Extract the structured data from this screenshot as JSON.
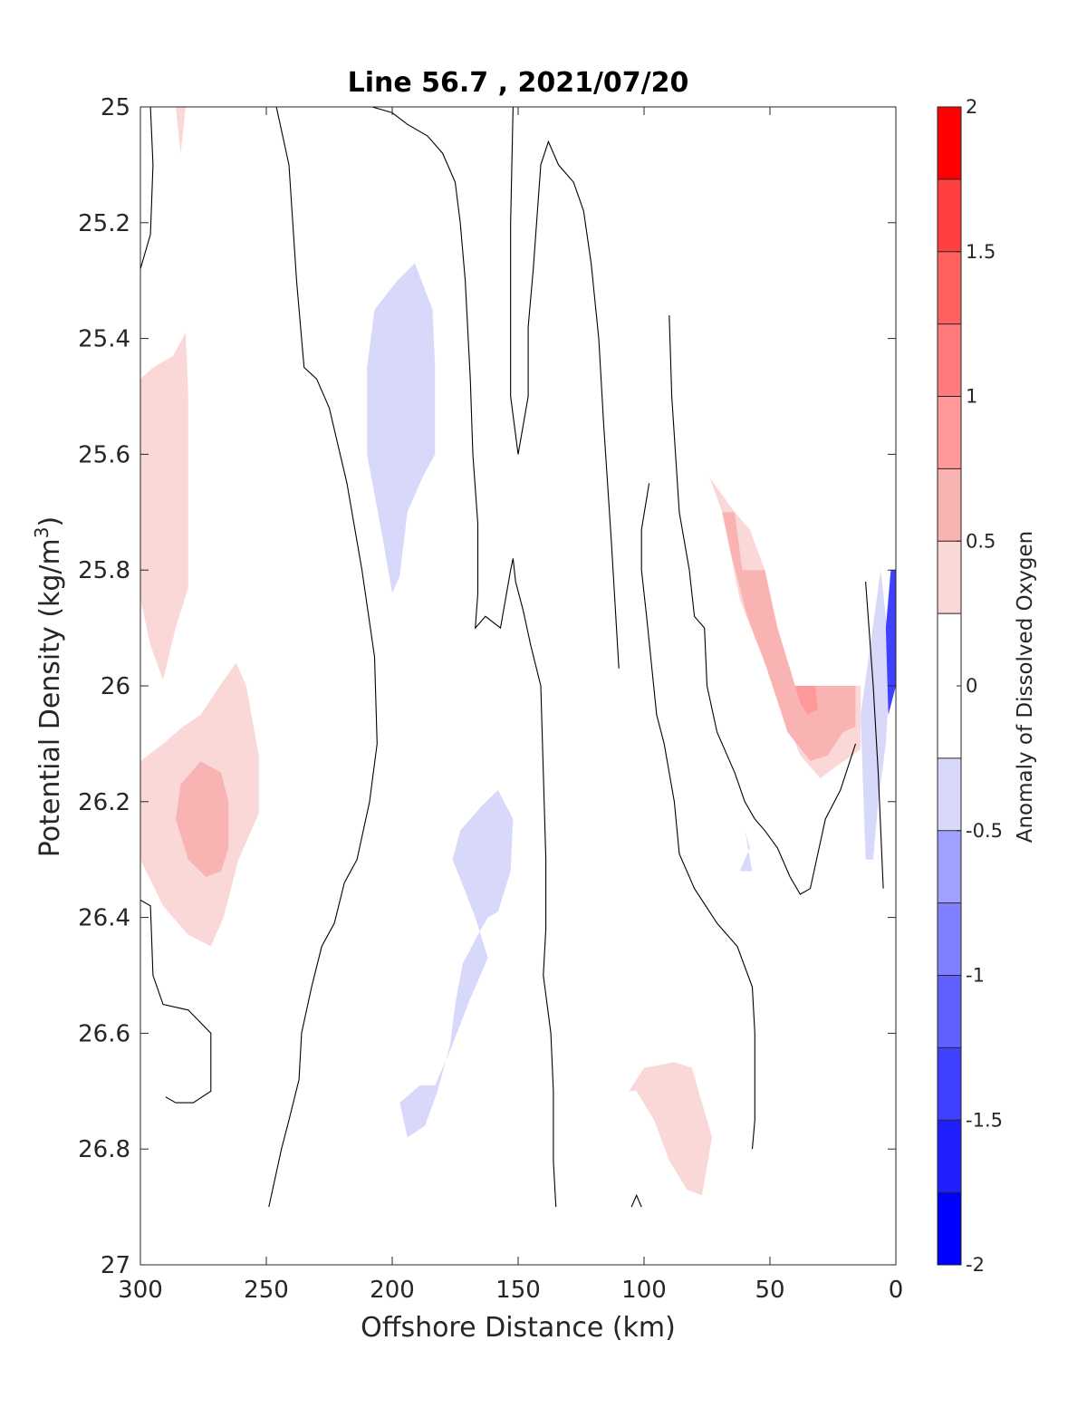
{
  "chart_data": {
    "type": "contour",
    "title": "Line 56.7 , 2021/07/20",
    "xlabel": "Offshore Distance (km)",
    "ylabel_main": "Potential Density (kg/m",
    "ylabel_sup": "3",
    "ylabel_close": ")",
    "xlim": [
      300,
      0
    ],
    "ylim": [
      25,
      27
    ],
    "x_reversed": true,
    "y_reversed": true,
    "xticks": [
      300,
      250,
      200,
      150,
      100,
      50,
      0
    ],
    "xtick_labels": [
      "300",
      "250",
      "200",
      "150",
      "100",
      "50",
      "0"
    ],
    "yticks": [
      25,
      25.2,
      25.4,
      25.6,
      25.8,
      26,
      26.2,
      26.4,
      26.6,
      26.8,
      27
    ],
    "ytick_labels": [
      "25",
      "25.2",
      "25.4",
      "25.6",
      "25.8",
      "26",
      "26.2",
      "26.4",
      "26.6",
      "26.8",
      "27"
    ],
    "colorbar": {
      "label": "Anomaly of Dissolved Oxygen",
      "range": [
        -2,
        2
      ],
      "ticks": [
        -2,
        -1.5,
        -1,
        -0.5,
        0,
        0.5,
        1,
        1.5,
        2
      ],
      "tick_labels": [
        "-2",
        "-1.5",
        "-1",
        "-0.5",
        "0",
        "0.5",
        "1",
        "1.5",
        "2"
      ],
      "levels": [
        {
          "from": -2.0,
          "to": -1.75,
          "color": "#0000ff"
        },
        {
          "from": -1.75,
          "to": -1.5,
          "color": "#2020ff"
        },
        {
          "from": -1.5,
          "to": -1.25,
          "color": "#4040ff"
        },
        {
          "from": -1.25,
          "to": -1.0,
          "color": "#6060ff"
        },
        {
          "from": -1.0,
          "to": -0.75,
          "color": "#8080ff"
        },
        {
          "from": -0.75,
          "to": -0.5,
          "color": "#a0a0ff"
        },
        {
          "from": -0.5,
          "to": -0.25,
          "color": "#d8d8fa"
        },
        {
          "from": -0.25,
          "to": 0.25,
          "color": "#ffffff"
        },
        {
          "from": 0.25,
          "to": 0.5,
          "color": "#fbd8d8"
        },
        {
          "from": 0.5,
          "to": 0.75,
          "color": "#f9b3b3"
        },
        {
          "from": 0.75,
          "to": 1.0,
          "color": "#ff9999"
        },
        {
          "from": 1.0,
          "to": 1.25,
          "color": "#ff7b7b"
        },
        {
          "from": 1.25,
          "to": 1.5,
          "color": "#ff6060"
        },
        {
          "from": 1.5,
          "to": 1.75,
          "color": "#ff4040"
        },
        {
          "from": 1.75,
          "to": 2.0,
          "color": "#ff0000"
        }
      ]
    },
    "filled_regions": [
      {
        "level": 0.35,
        "points": [
          [
            286,
            25
          ],
          [
            282,
            25
          ],
          [
            284,
            25.08
          ]
        ]
      },
      {
        "level": 0.35,
        "points": [
          [
            300,
            25.75
          ],
          [
            300,
            25.47
          ],
          [
            295,
            25.45
          ],
          [
            287,
            25.43
          ],
          [
            282,
            25.39
          ],
          [
            281,
            25.5
          ],
          [
            281,
            25.83
          ],
          [
            286,
            25.9
          ],
          [
            291,
            25.99
          ],
          [
            296,
            25.93
          ],
          [
            300,
            25.85
          ]
        ]
      },
      {
        "level": 0.35,
        "points": [
          [
            300,
            26.13
          ],
          [
            300,
            26.3
          ],
          [
            291,
            26.38
          ],
          [
            281,
            26.43
          ],
          [
            272,
            26.45
          ],
          [
            267,
            26.4
          ],
          [
            261,
            26.3
          ],
          [
            253,
            26.22
          ],
          [
            253,
            26.12
          ],
          [
            258,
            26
          ],
          [
            262,
            25.96
          ],
          [
            270,
            26.01
          ],
          [
            276,
            26.05
          ],
          [
            283,
            26.07
          ],
          [
            291,
            26.1
          ]
        ]
      },
      {
        "level": 0.6,
        "points": [
          [
            284,
            26.17
          ],
          [
            276,
            26.13
          ],
          [
            268,
            26.15
          ],
          [
            265,
            26.2
          ],
          [
            265,
            26.28
          ],
          [
            268,
            26.32
          ],
          [
            274,
            26.33
          ],
          [
            281,
            26.3
          ],
          [
            286,
            26.23
          ]
        ]
      },
      {
        "level": -0.35,
        "points": [
          [
            191,
            25.27
          ],
          [
            184,
            25.35
          ],
          [
            183,
            25.45
          ],
          [
            183,
            25.6
          ],
          [
            188,
            25.64
          ],
          [
            194,
            25.7
          ],
          [
            197,
            25.81
          ],
          [
            200,
            25.84
          ],
          [
            204,
            25.74
          ],
          [
            210,
            25.6
          ],
          [
            210,
            25.45
          ],
          [
            207,
            25.35
          ],
          [
            198,
            25.3
          ]
        ]
      },
      {
        "level": -0.35,
        "points": [
          [
            158,
            26.18
          ],
          [
            152,
            26.23
          ],
          [
            153,
            26.32
          ],
          [
            158,
            26.39
          ],
          [
            162,
            26.4
          ],
          [
            166,
            26.43
          ],
          [
            172,
            26.48
          ],
          [
            175,
            26.55
          ],
          [
            177,
            26.62
          ],
          [
            182,
            26.7
          ],
          [
            187,
            26.76
          ],
          [
            194,
            26.78
          ],
          [
            197,
            26.72
          ],
          [
            189,
            26.69
          ],
          [
            183,
            26.69
          ],
          [
            177,
            26.63
          ],
          [
            169,
            26.54
          ],
          [
            162,
            26.47
          ],
          [
            167,
            26.4
          ],
          [
            176,
            26.3
          ],
          [
            173,
            26.25
          ],
          [
            165,
            26.21
          ]
        ]
      },
      {
        "level": 0.35,
        "points": [
          [
            106,
            26.7
          ],
          [
            100,
            26.66
          ],
          [
            88,
            26.65
          ],
          [
            81,
            26.66
          ],
          [
            73,
            26.78
          ],
          [
            77,
            26.88
          ],
          [
            83,
            26.87
          ],
          [
            90,
            26.82
          ],
          [
            96,
            26.75
          ],
          [
            103,
            26.7
          ]
        ]
      },
      {
        "level": 0.35,
        "points": [
          [
            74,
            25.64
          ],
          [
            69,
            25.7
          ],
          [
            62,
            25.85
          ],
          [
            53,
            25.95
          ],
          [
            47,
            26.02
          ],
          [
            38,
            26.12
          ],
          [
            30,
            26.16
          ],
          [
            24,
            26.14
          ],
          [
            14,
            26.11
          ],
          [
            14,
            26
          ],
          [
            30,
            26
          ],
          [
            40,
            26
          ],
          [
            47,
            25.9
          ],
          [
            52,
            25.8
          ],
          [
            58,
            25.73
          ],
          [
            64,
            25.7
          ]
        ]
      },
      {
        "level": 0.6,
        "points": [
          [
            69,
            25.7
          ],
          [
            64,
            25.7
          ],
          [
            61,
            25.8
          ],
          [
            52,
            25.8
          ],
          [
            47,
            25.9
          ],
          [
            40,
            26
          ],
          [
            30,
            26
          ],
          [
            16,
            26
          ],
          [
            16,
            26.07
          ],
          [
            21,
            26.08
          ],
          [
            27,
            26.12
          ],
          [
            34,
            26.13
          ],
          [
            43,
            26.08
          ],
          [
            52,
            25.96
          ],
          [
            59,
            25.88
          ],
          [
            65,
            25.78
          ]
        ]
      },
      {
        "level": 0.85,
        "points": [
          [
            40,
            26
          ],
          [
            32,
            26
          ],
          [
            31,
            26.04
          ],
          [
            35,
            26.05
          ],
          [
            38,
            26.03
          ]
        ]
      },
      {
        "level": -0.35,
        "points": [
          [
            60,
            26.25
          ],
          [
            58,
            26.28
          ],
          [
            62,
            26.32
          ],
          [
            57,
            26.32
          ]
        ]
      },
      {
        "level": -0.35,
        "points": [
          [
            6,
            25.8
          ],
          [
            4,
            25.88
          ],
          [
            2,
            25.96
          ],
          [
            4,
            26.1
          ],
          [
            7,
            26.2
          ],
          [
            9,
            26.3
          ],
          [
            12,
            26.3
          ],
          [
            14,
            26.05
          ]
        ]
      },
      {
        "level": -1.3,
        "points": [
          [
            2,
            25.8
          ],
          [
            0,
            25.8
          ],
          [
            0,
            26
          ],
          [
            3,
            26.05
          ],
          [
            4,
            25.9
          ]
        ]
      }
    ],
    "contour_lines": [
      [
        [
          300,
          25.28
        ],
        [
          296,
          25.22
        ],
        [
          295,
          25.1
        ],
        [
          296,
          25
        ]
      ],
      [
        [
          300,
          26.37
        ],
        [
          296,
          26.38
        ],
        [
          295,
          26.5
        ],
        [
          291,
          26.55
        ],
        [
          281,
          26.56
        ],
        [
          272,
          26.6
        ],
        [
          272,
          26.7
        ],
        [
          279,
          26.72
        ],
        [
          286,
          26.72
        ],
        [
          290,
          26.71
        ]
      ],
      [
        [
          246,
          25
        ],
        [
          241,
          25.1
        ],
        [
          238,
          25.3
        ],
        [
          236,
          25.4
        ],
        [
          235,
          25.45
        ],
        [
          230,
          25.47
        ],
        [
          225,
          25.52
        ],
        [
          218,
          25.65
        ],
        [
          212,
          25.8
        ],
        [
          207,
          25.95
        ],
        [
          206,
          26.1
        ],
        [
          209,
          26.2
        ],
        [
          214,
          26.3
        ],
        [
          219,
          26.34
        ],
        [
          223,
          26.41
        ],
        [
          228,
          26.45
        ],
        [
          232,
          26.52
        ],
        [
          236,
          26.6
        ],
        [
          237,
          26.68
        ],
        [
          241,
          26.75
        ],
        [
          244,
          26.8
        ],
        [
          249,
          26.9
        ]
      ],
      [
        [
          208,
          25
        ],
        [
          200,
          25.01
        ],
        [
          194,
          25.03
        ],
        [
          186,
          25.05
        ],
        [
          180,
          25.08
        ],
        [
          175,
          25.13
        ],
        [
          173,
          25.2
        ],
        [
          171,
          25.3
        ],
        [
          169,
          25.47
        ],
        [
          168,
          25.6
        ],
        [
          166,
          25.72
        ],
        [
          166,
          25.84
        ],
        [
          167,
          25.9
        ],
        [
          163,
          25.88
        ],
        [
          157,
          25.9
        ],
        [
          155,
          25.85
        ],
        [
          153,
          25.8
        ],
        [
          152,
          25.78
        ],
        [
          151,
          25.82
        ],
        [
          148,
          25.87
        ],
        [
          145,
          25.93
        ],
        [
          141,
          26
        ],
        [
          140,
          26.15
        ],
        [
          139,
          26.3
        ],
        [
          139,
          26.42
        ],
        [
          140,
          26.5
        ],
        [
          137,
          26.6
        ],
        [
          136,
          26.7
        ],
        [
          136,
          26.82
        ],
        [
          135,
          26.9
        ]
      ],
      [
        [
          152,
          25
        ],
        [
          153,
          25.2
        ],
        [
          153,
          25.5
        ],
        [
          150,
          25.6
        ],
        [
          146,
          25.5
        ],
        [
          146,
          25.38
        ],
        [
          144,
          25.28
        ],
        [
          141,
          25.1
        ],
        [
          138,
          25.06
        ],
        [
          134,
          25.1
        ],
        [
          128,
          25.13
        ],
        [
          124,
          25.18
        ],
        [
          121,
          25.27
        ],
        [
          118,
          25.4
        ],
        [
          116,
          25.55
        ],
        [
          113,
          25.75
        ],
        [
          110,
          25.97
        ]
      ],
      [
        [
          90,
          25.36
        ],
        [
          89,
          25.5
        ],
        [
          86,
          25.7
        ],
        [
          82,
          25.8
        ],
        [
          80,
          25.88
        ],
        [
          76,
          25.9
        ],
        [
          75,
          26.0
        ],
        [
          71,
          26.08
        ],
        [
          64,
          26.15
        ],
        [
          60,
          26.2
        ],
        [
          56,
          26.23
        ],
        [
          52,
          26.25
        ],
        [
          47,
          26.28
        ],
        [
          42,
          26.33
        ],
        [
          38,
          26.36
        ],
        [
          34,
          26.35
        ],
        [
          28,
          26.23
        ],
        [
          22,
          26.18
        ],
        [
          16,
          26.1
        ]
      ],
      [
        [
          98,
          25.65
        ],
        [
          101,
          25.73
        ],
        [
          101,
          25.8
        ],
        [
          99,
          25.88
        ],
        [
          95,
          26.05
        ],
        [
          92,
          26.1
        ],
        [
          88,
          26.2
        ],
        [
          86,
          26.29
        ],
        [
          80,
          26.35
        ],
        [
          71,
          26.41
        ],
        [
          63,
          26.45
        ],
        [
          57,
          26.52
        ],
        [
          56,
          26.6
        ],
        [
          56,
          26.75
        ],
        [
          57,
          26.8
        ]
      ],
      [
        [
          105,
          26.9
        ],
        [
          103,
          26.88
        ],
        [
          101,
          26.9
        ]
      ],
      [
        [
          12,
          25.82
        ],
        [
          9,
          26
        ],
        [
          7,
          26.15
        ],
        [
          5,
          26.35
        ]
      ]
    ]
  }
}
